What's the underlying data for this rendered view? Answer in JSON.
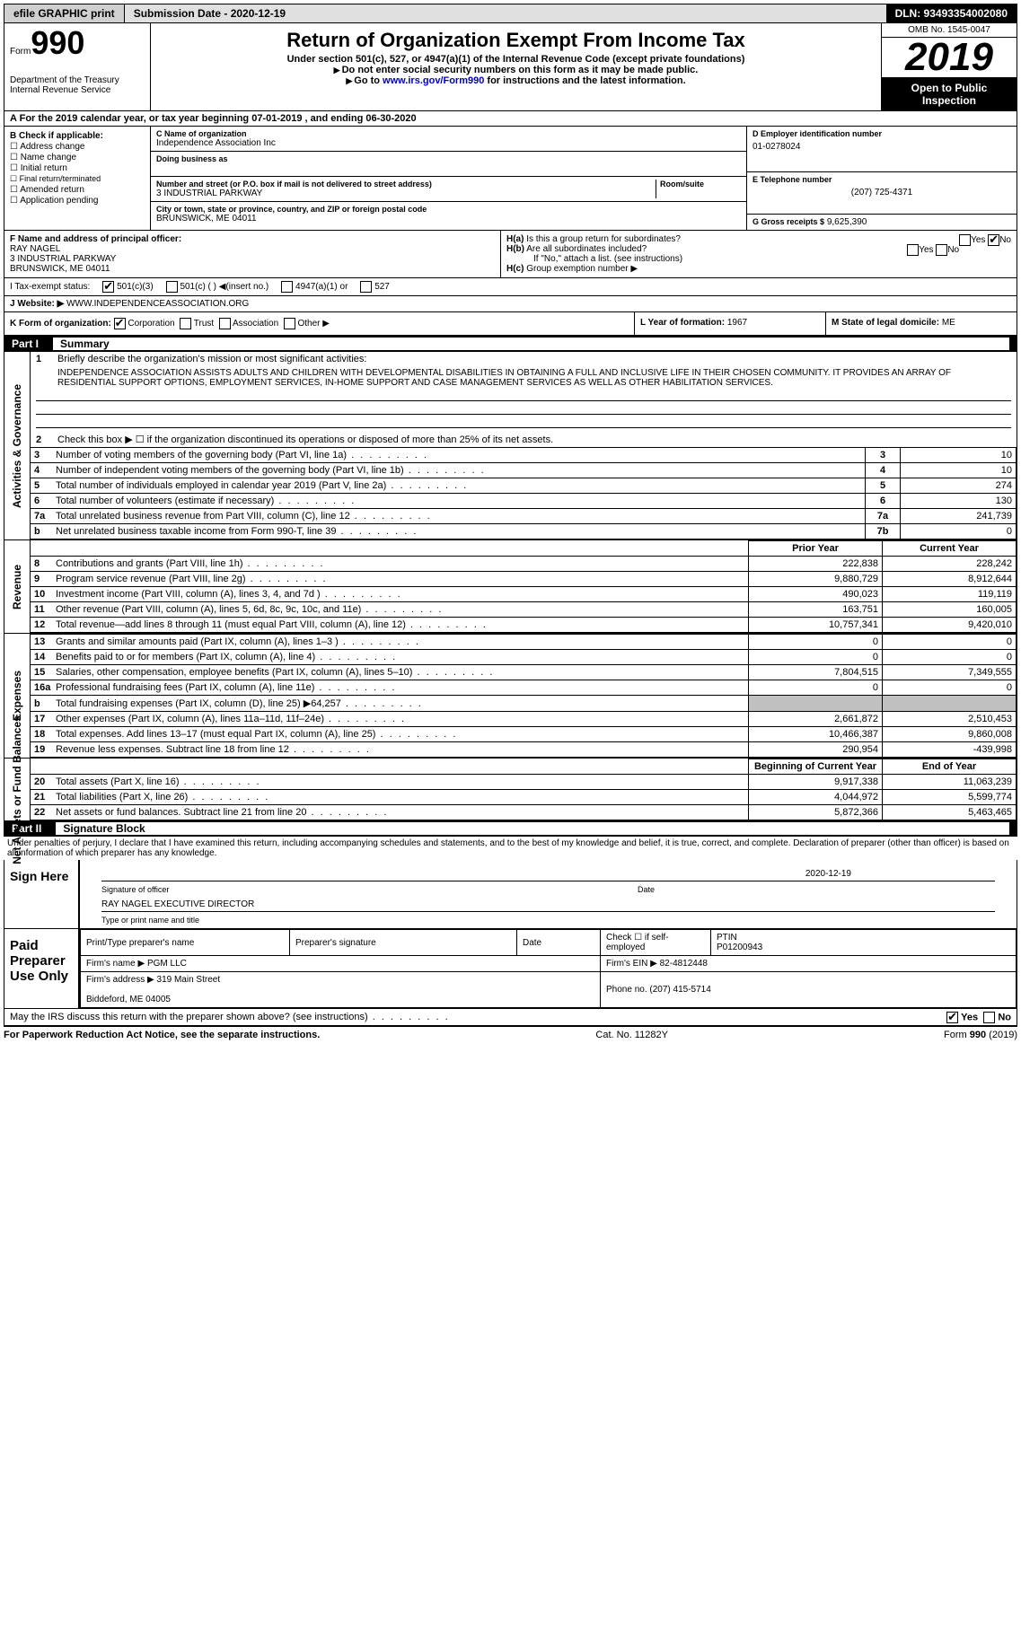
{
  "topbar": {
    "efile": "efile GRAPHIC print",
    "submission_label": "Submission Date - 2020-12-19",
    "dln_label": "DLN: 93493354002080"
  },
  "header": {
    "form_word": "Form",
    "form_num": "990",
    "dept": "Department of the Treasury\nInternal Revenue Service",
    "title": "Return of Organization Exempt From Income Tax",
    "subtitle": "Under section 501(c), 527, or 4947(a)(1) of the Internal Revenue Code (except private foundations)",
    "note1": "Do not enter social security numbers on this form as it may be made public.",
    "note2_pre": "Go to ",
    "note2_link": "www.irs.gov/Form990",
    "note2_post": " for instructions and the latest information.",
    "omb": "OMB No. 1545-0047",
    "year": "2019",
    "open": "Open to Public Inspection"
  },
  "period": "For the 2019 calendar year, or tax year beginning 07-01-2019  , and ending 06-30-2020",
  "boxB": {
    "label": "B Check if applicable:",
    "items": [
      "Address change",
      "Name change",
      "Initial return",
      "Final return/terminated",
      "Amended return",
      "Application pending"
    ]
  },
  "boxC": {
    "name_label": "C Name of organization",
    "name": "Independence Association Inc",
    "dba_label": "Doing business as",
    "addr_label": "Number and street (or P.O. box if mail is not delivered to street address)",
    "room_label": "Room/suite",
    "addr": "3 INDUSTRIAL PARKWAY",
    "city_label": "City or town, state or province, country, and ZIP or foreign postal code",
    "city": "BRUNSWICK, ME  04011"
  },
  "boxD": {
    "label": "D Employer identification number",
    "value": "01-0278024"
  },
  "boxE": {
    "label": "E Telephone number",
    "value": "(207) 725-4371"
  },
  "boxG": {
    "label": "G Gross receipts $",
    "value": "9,625,390"
  },
  "boxF": {
    "label": "F  Name and address of principal officer:",
    "name": "RAY NAGEL",
    "addr1": "3 INDUSTRIAL PARKWAY",
    "addr2": "BRUNSWICK, ME  04011"
  },
  "boxH": {
    "ha": "Is this a group return for subordinates?",
    "ha_no": true,
    "hb": "Are all subordinates included?",
    "hb_note": "If \"No,\" attach a list. (see instructions)",
    "hc": "Group exemption number ▶"
  },
  "boxI": {
    "label": "I   Tax-exempt status:",
    "c3": "501(c)(3)",
    "c": "501(c) (  ) ◀(insert no.)",
    "a1": "4947(a)(1) or",
    "527": "527"
  },
  "boxJ": {
    "label": "J   Website: ▶",
    "value": "WWW.INDEPENDENCEASSOCIATION.ORG"
  },
  "boxK": {
    "label": "K Form of organization:",
    "corp": "Corporation",
    "trust": "Trust",
    "assoc": "Association",
    "other": "Other ▶"
  },
  "boxL": {
    "label": "L Year of formation:",
    "value": "1967"
  },
  "boxM": {
    "label": "M State of legal domicile:",
    "value": "ME"
  },
  "part1": {
    "num": "Part I",
    "title": "Summary"
  },
  "summary": {
    "l1": "Briefly describe the organization's mission or most significant activities:",
    "mission": "INDEPENDENCE ASSOCIATION ASSISTS ADULTS AND CHILDREN WITH DEVELOPMENTAL DISABILITIES IN OBTAINING A FULL AND INCLUSIVE LIFE IN THEIR CHOSEN COMMUNITY. IT PROVIDES AN ARRAY OF RESIDENTIAL SUPPORT OPTIONS, EMPLOYMENT SERVICES, IN-HOME SUPPORT AND CASE MANAGEMENT SERVICES AS WELL AS OTHER HABILITATION SERVICES.",
    "l2": "Check this box ▶ ☐  if the organization discontinued its operations or disposed of more than 25% of its net assets.",
    "rows_a": [
      {
        "n": "3",
        "t": "Number of voting members of the governing body (Part VI, line 1a)",
        "box": "3",
        "v": "10"
      },
      {
        "n": "4",
        "t": "Number of independent voting members of the governing body (Part VI, line 1b)",
        "box": "4",
        "v": "10"
      },
      {
        "n": "5",
        "t": "Total number of individuals employed in calendar year 2019 (Part V, line 2a)",
        "box": "5",
        "v": "274"
      },
      {
        "n": "6",
        "t": "Total number of volunteers (estimate if necessary)",
        "box": "6",
        "v": "130"
      },
      {
        "n": "7a",
        "t": "Total unrelated business revenue from Part VIII, column (C), line 12",
        "box": "7a",
        "v": "241,739"
      },
      {
        "n": "b",
        "t": "Net unrelated business taxable income from Form 990-T, line 39",
        "box": "7b",
        "v": "0"
      }
    ],
    "hdr_prior": "Prior Year",
    "hdr_current": "Current Year",
    "rows_rev": [
      {
        "n": "8",
        "t": "Contributions and grants (Part VIII, line 1h)",
        "p": "222,838",
        "c": "228,242"
      },
      {
        "n": "9",
        "t": "Program service revenue (Part VIII, line 2g)",
        "p": "9,880,729",
        "c": "8,912,644"
      },
      {
        "n": "10",
        "t": "Investment income (Part VIII, column (A), lines 3, 4, and 7d )",
        "p": "490,023",
        "c": "119,119"
      },
      {
        "n": "11",
        "t": "Other revenue (Part VIII, column (A), lines 5, 6d, 8c, 9c, 10c, and 11e)",
        "p": "163,751",
        "c": "160,005"
      },
      {
        "n": "12",
        "t": "Total revenue—add lines 8 through 11 (must equal Part VIII, column (A), line 12)",
        "p": "10,757,341",
        "c": "9,420,010"
      }
    ],
    "rows_exp": [
      {
        "n": "13",
        "t": "Grants and similar amounts paid (Part IX, column (A), lines 1–3 )",
        "p": "0",
        "c": "0"
      },
      {
        "n": "14",
        "t": "Benefits paid to or for members (Part IX, column (A), line 4)",
        "p": "0",
        "c": "0"
      },
      {
        "n": "15",
        "t": "Salaries, other compensation, employee benefits (Part IX, column (A), lines 5–10)",
        "p": "7,804,515",
        "c": "7,349,555"
      },
      {
        "n": "16a",
        "t": "Professional fundraising fees (Part IX, column (A), line 11e)",
        "p": "0",
        "c": "0"
      },
      {
        "n": "b",
        "t": "Total fundraising expenses (Part IX, column (D), line 25) ▶64,257",
        "p": "",
        "c": "",
        "grey": true
      },
      {
        "n": "17",
        "t": "Other expenses (Part IX, column (A), lines 11a–11d, 11f–24e)",
        "p": "2,661,872",
        "c": "2,510,453"
      },
      {
        "n": "18",
        "t": "Total expenses. Add lines 13–17 (must equal Part IX, column (A), line 25)",
        "p": "10,466,387",
        "c": "9,860,008"
      },
      {
        "n": "19",
        "t": "Revenue less expenses. Subtract line 18 from line 12",
        "p": "290,954",
        "c": "-439,998"
      }
    ],
    "hdr_beg": "Beginning of Current Year",
    "hdr_end": "End of Year",
    "rows_net": [
      {
        "n": "20",
        "t": "Total assets (Part X, line 16)",
        "p": "9,917,338",
        "c": "11,063,239"
      },
      {
        "n": "21",
        "t": "Total liabilities (Part X, line 26)",
        "p": "4,044,972",
        "c": "5,599,774"
      },
      {
        "n": "22",
        "t": "Net assets or fund balances. Subtract line 21 from line 20",
        "p": "5,872,366",
        "c": "5,463,465"
      }
    ],
    "vtab_gov": "Activities & Governance",
    "vtab_rev": "Revenue",
    "vtab_exp": "Expenses",
    "vtab_net": "Net Assets or Fund Balances"
  },
  "part2": {
    "num": "Part II",
    "title": "Signature Block"
  },
  "sig": {
    "perjury": "Under penalties of perjury, I declare that I have examined this return, including accompanying schedules and statements, and to the best of my knowledge and belief, it is true, correct, and complete. Declaration of preparer (other than officer) is based on all information of which preparer has any knowledge.",
    "sign_here": "Sign Here",
    "sig_officer": "Signature of officer",
    "date_val": "2020-12-19",
    "date_lbl": "Date",
    "name_title": "RAY NAGEL EXECUTIVE DIRECTOR",
    "name_lbl": "Type or print name and title",
    "paid": "Paid Preparer Use Only",
    "prep_name_lbl": "Print/Type preparer's name",
    "prep_sig_lbl": "Preparer's signature",
    "prep_date_lbl": "Date",
    "prep_check": "Check ☐ if self-employed",
    "ptin_lbl": "PTIN",
    "ptin": "P01200943",
    "firm_name_lbl": "Firm's name   ▶",
    "firm_name": "PGM LLC",
    "firm_ein_lbl": "Firm's EIN ▶",
    "firm_ein": "82-4812448",
    "firm_addr_lbl": "Firm's address ▶",
    "firm_addr": "319 Main Street\n\nBiddeford, ME  04005",
    "phone_lbl": "Phone no.",
    "phone": "(207) 415-5714",
    "discuss": "May the IRS discuss this return with the preparer shown above? (see instructions)",
    "yes": "Yes",
    "no": "No"
  },
  "footer": {
    "left": "For Paperwork Reduction Act Notice, see the separate instructions.",
    "mid": "Cat. No. 11282Y",
    "right": "Form 990 (2019)"
  }
}
